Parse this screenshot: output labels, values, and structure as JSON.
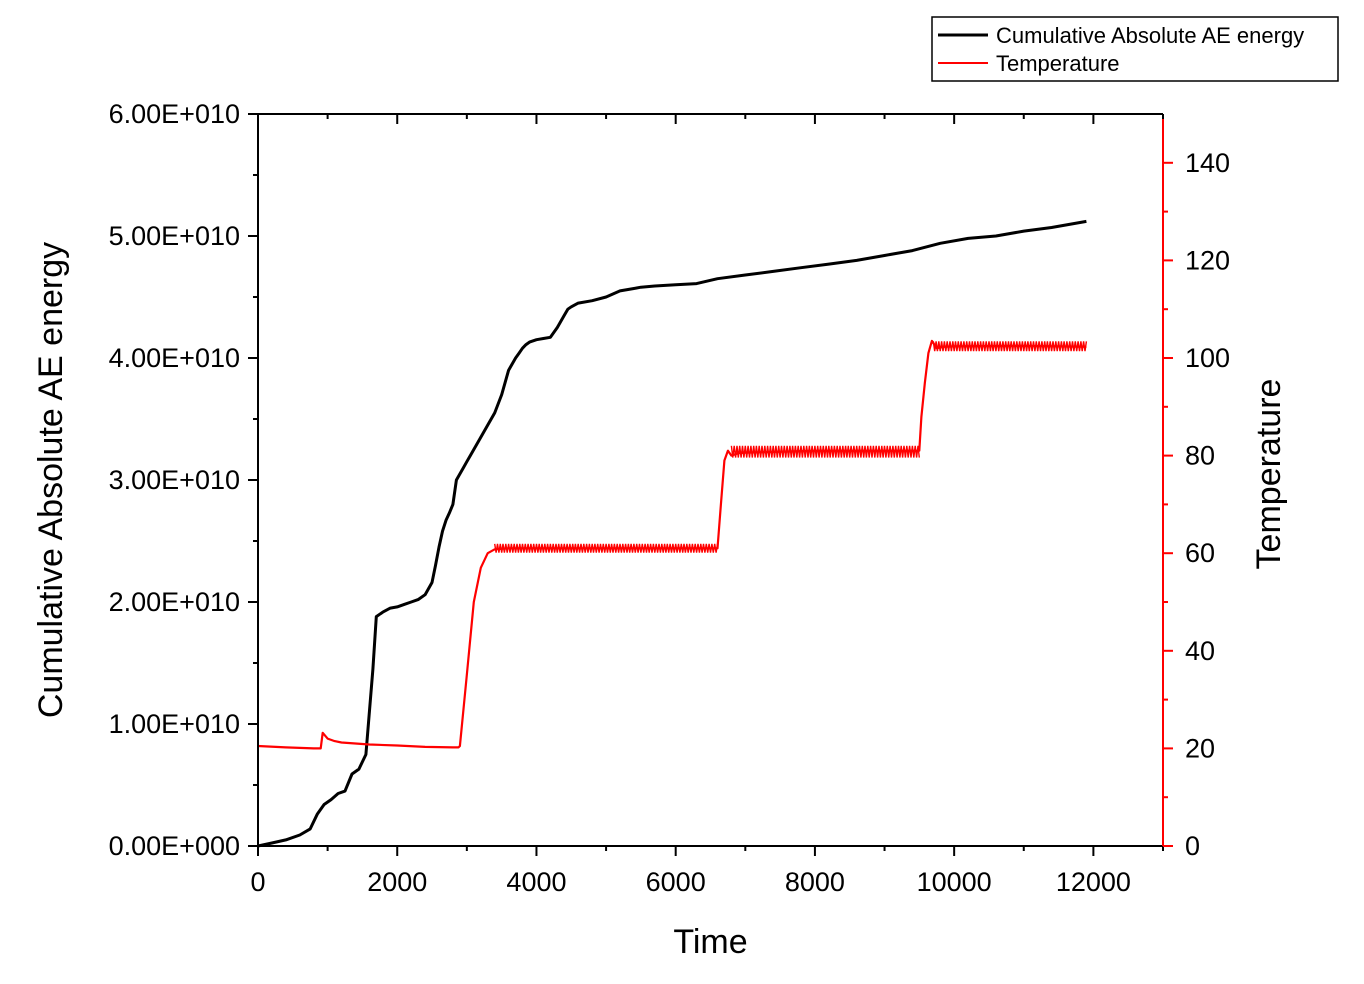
{
  "chart_data": {
    "type": "line",
    "title": "",
    "xlabel": "Time",
    "ylabel": "Cumulative Absolute AE energy",
    "y2label": "Temperature",
    "xlim": [
      0,
      13000
    ],
    "ylim": [
      0,
      60000000000
    ],
    "y2lim": [
      0,
      150
    ],
    "xticks": [
      0,
      2000,
      4000,
      6000,
      8000,
      10000,
      12000
    ],
    "xtick_labels": [
      "0",
      "2000",
      "4000",
      "6000",
      "8000",
      "10000",
      "12000"
    ],
    "yticks": [
      0,
      10000000000,
      20000000000,
      30000000000,
      40000000000,
      50000000000,
      60000000000
    ],
    "ytick_labels": [
      "0.00E+000",
      "1.00E+010",
      "2.00E+010",
      "3.00E+010",
      "4.00E+010",
      "5.00E+010",
      "6.00E+010"
    ],
    "y2ticks": [
      0,
      20,
      40,
      60,
      80,
      100,
      120,
      140
    ],
    "y2tick_labels": [
      "0",
      "20",
      "40",
      "60",
      "80",
      "100",
      "120",
      "140"
    ],
    "grid": false,
    "legend_position": "top-right outside",
    "series": [
      {
        "name": "Cumulative Absolute AE energy",
        "axis": "left",
        "color": "#000000",
        "x": [
          0,
          200,
          400,
          600,
          750,
          850,
          950,
          1050,
          1150,
          1250,
          1350,
          1450,
          1550,
          1600,
          1650,
          1700,
          1750,
          1800,
          1900,
          2000,
          2100,
          2200,
          2300,
          2400,
          2500,
          2550,
          2600,
          2650,
          2700,
          2750,
          2800,
          2850,
          2950,
          3000,
          3050,
          3100,
          3200,
          3300,
          3400,
          3500,
          3600,
          3700,
          3750,
          3800,
          3850,
          3900,
          4000,
          4100,
          4200,
          4300,
          4400,
          4450,
          4500,
          4600,
          4800,
          5000,
          5200,
          5400,
          5500,
          5700,
          6000,
          6300,
          6600,
          7000,
          7400,
          7800,
          8200,
          8600,
          9000,
          9400,
          9800,
          10200,
          10600,
          11000,
          11400,
          11900
        ],
        "y": [
          0,
          250000000,
          500000000,
          900000000,
          1400000000,
          2600000000,
          3400000000,
          3800000000,
          4300000000,
          4500000000,
          5900000000,
          6300000000,
          7500000000,
          11000000000,
          14500000000,
          18800000000,
          19000000000,
          19200000000,
          19500000000,
          19600000000,
          19800000000,
          20000000000,
          20200000000,
          20600000000,
          21600000000,
          23000000000,
          24500000000,
          25800000000,
          26700000000,
          27300000000,
          28000000000,
          30000000000,
          31000000000,
          31500000000,
          32000000000,
          32500000000,
          33500000000,
          34500000000,
          35500000000,
          37000000000,
          39000000000,
          40000000000,
          40400000000,
          40800000000,
          41100000000,
          41300000000,
          41500000000,
          41600000000,
          41700000000,
          42500000000,
          43500000000,
          44000000000,
          44200000000,
          44500000000,
          44700000000,
          45000000000,
          45500000000,
          45700000000,
          45800000000,
          45900000000,
          46000000000,
          46100000000,
          46500000000,
          46800000000,
          47100000000,
          47400000000,
          47700000000,
          48000000000,
          48400000000,
          48800000000,
          49400000000,
          49800000000,
          50000000000,
          50400000000,
          50700000000,
          51200000000
        ]
      },
      {
        "name": "Temperature",
        "axis": "right",
        "color": "#ff0000",
        "x": [
          0,
          400,
          800,
          900,
          930,
          1000,
          1100,
          1200,
          1600,
          2000,
          2400,
          2800,
          2880,
          2900,
          3000,
          3100,
          3200,
          3300,
          3400,
          3600,
          4000,
          5000,
          6000,
          6600,
          6650,
          6700,
          6750,
          6800,
          6900,
          7000,
          8000,
          9000,
          9500,
          9530,
          9580,
          9630,
          9680,
          9750,
          9850,
          10000,
          11000,
          11900
        ],
        "y": [
          20.5,
          20.2,
          20.0,
          20.0,
          23.2,
          22.0,
          21.5,
          21.2,
          20.8,
          20.6,
          20.3,
          20.2,
          20.2,
          20.5,
          35.0,
          50.0,
          57.0,
          60.0,
          60.8,
          61.0,
          61.0,
          61.0,
          61.0,
          61.0,
          70.0,
          79.0,
          81.0,
          80.0,
          80.5,
          80.6,
          81.0,
          81.0,
          81.0,
          88.0,
          95.0,
          101.0,
          103.5,
          102.0,
          102.3,
          102.4,
          102.5,
          102.3
        ]
      }
    ]
  }
}
